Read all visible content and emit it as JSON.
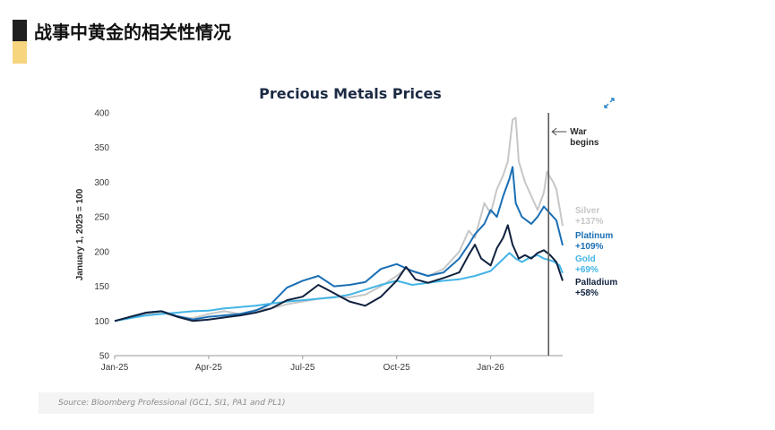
{
  "slide": {
    "title": "战事中黄金的相关性情况",
    "accent_colors": [
      "#1f1f1f",
      "#f7d57f"
    ]
  },
  "chart_data": {
    "type": "line",
    "title": "Precious Metals Prices",
    "xlabel": "",
    "ylabel": "January 1, 2025 = 100",
    "ylim": [
      50,
      400
    ],
    "yticks": [
      50,
      100,
      150,
      200,
      250,
      300,
      350,
      400
    ],
    "xlim": [
      0,
      14.3
    ],
    "xticks": [
      {
        "label": "Jan-25",
        "t": 0
      },
      {
        "label": "Apr-25",
        "t": 3
      },
      {
        "label": "Jul-25",
        "t": 6
      },
      {
        "label": "Oct-25",
        "t": 9
      },
      {
        "label": "Jan-26",
        "t": 12
      }
    ],
    "x_unit": "months since Jan 1, 2025",
    "grid": false,
    "series": [
      {
        "name": "Silver",
        "change": "+137%",
        "color": "#c7c7c7",
        "points": [
          [
            0,
            100
          ],
          [
            0.5,
            104
          ],
          [
            1,
            110
          ],
          [
            1.5,
            112
          ],
          [
            2,
            106
          ],
          [
            2.5,
            104
          ],
          [
            3,
            110
          ],
          [
            3.5,
            114
          ],
          [
            4,
            110
          ],
          [
            4.5,
            116
          ],
          [
            5,
            118
          ],
          [
            5.5,
            124
          ],
          [
            6,
            128
          ],
          [
            6.5,
            132
          ],
          [
            7,
            135
          ],
          [
            7.5,
            134
          ],
          [
            8,
            138
          ],
          [
            8.5,
            150
          ],
          [
            9,
            165
          ],
          [
            9.3,
            176
          ],
          [
            9.6,
            170
          ],
          [
            10,
            165
          ],
          [
            10.5,
            175
          ],
          [
            11,
            200
          ],
          [
            11.3,
            230
          ],
          [
            11.5,
            220
          ],
          [
            11.8,
            270
          ],
          [
            12,
            255
          ],
          [
            12.2,
            290
          ],
          [
            12.4,
            310
          ],
          [
            12.55,
            330
          ],
          [
            12.7,
            390
          ],
          [
            12.8,
            393
          ],
          [
            12.9,
            330
          ],
          [
            13.1,
            300
          ],
          [
            13.3,
            280
          ],
          [
            13.5,
            260
          ],
          [
            13.7,
            285
          ],
          [
            13.8,
            315
          ],
          [
            14.0,
            300
          ],
          [
            14.1,
            290
          ],
          [
            14.3,
            237
          ]
        ]
      },
      {
        "name": "Platinum",
        "change": "+109%",
        "color": "#1a6fb5",
        "points": [
          [
            0,
            100
          ],
          [
            0.5,
            105
          ],
          [
            1,
            112
          ],
          [
            1.5,
            114
          ],
          [
            2,
            107
          ],
          [
            2.5,
            102
          ],
          [
            3,
            106
          ],
          [
            3.5,
            108
          ],
          [
            4,
            110
          ],
          [
            4.5,
            115
          ],
          [
            5,
            125
          ],
          [
            5.5,
            148
          ],
          [
            6,
            158
          ],
          [
            6.5,
            165
          ],
          [
            7,
            150
          ],
          [
            7.5,
            152
          ],
          [
            8,
            156
          ],
          [
            8.5,
            175
          ],
          [
            9,
            182
          ],
          [
            9.5,
            172
          ],
          [
            10,
            165
          ],
          [
            10.5,
            170
          ],
          [
            11,
            190
          ],
          [
            11.3,
            210
          ],
          [
            11.5,
            225
          ],
          [
            11.8,
            240
          ],
          [
            12,
            260
          ],
          [
            12.2,
            250
          ],
          [
            12.4,
            280
          ],
          [
            12.6,
            305
          ],
          [
            12.7,
            322
          ],
          [
            12.8,
            270
          ],
          [
            13,
            250
          ],
          [
            13.3,
            240
          ],
          [
            13.5,
            250
          ],
          [
            13.7,
            265
          ],
          [
            13.9,
            255
          ],
          [
            14.1,
            245
          ],
          [
            14.3,
            209
          ]
        ]
      },
      {
        "name": "Gold",
        "change": "+69%",
        "color": "#43b5e6",
        "points": [
          [
            0,
            100
          ],
          [
            0.5,
            104
          ],
          [
            1,
            108
          ],
          [
            1.5,
            110
          ],
          [
            2,
            112
          ],
          [
            2.5,
            114
          ],
          [
            3,
            115
          ],
          [
            3.5,
            118
          ],
          [
            4,
            120
          ],
          [
            4.5,
            122
          ],
          [
            5,
            125
          ],
          [
            5.5,
            128
          ],
          [
            6,
            130
          ],
          [
            6.5,
            132
          ],
          [
            7,
            134
          ],
          [
            7.5,
            138
          ],
          [
            8,
            145
          ],
          [
            8.5,
            152
          ],
          [
            9,
            158
          ],
          [
            9.5,
            152
          ],
          [
            10,
            155
          ],
          [
            10.5,
            158
          ],
          [
            11,
            160
          ],
          [
            11.5,
            165
          ],
          [
            12,
            172
          ],
          [
            12.3,
            185
          ],
          [
            12.6,
            198
          ],
          [
            12.8,
            190
          ],
          [
            13,
            185
          ],
          [
            13.2,
            190
          ],
          [
            13.5,
            195
          ],
          [
            13.7,
            190
          ],
          [
            14,
            186
          ],
          [
            14.2,
            180
          ],
          [
            14.3,
            169
          ]
        ]
      },
      {
        "name": "Palladium",
        "change": "+58%",
        "color": "#10213f",
        "points": [
          [
            0,
            100
          ],
          [
            0.5,
            106
          ],
          [
            1,
            112
          ],
          [
            1.5,
            114
          ],
          [
            2,
            106
          ],
          [
            2.5,
            100
          ],
          [
            3,
            102
          ],
          [
            3.5,
            105
          ],
          [
            4,
            108
          ],
          [
            4.5,
            112
          ],
          [
            5,
            118
          ],
          [
            5.5,
            130
          ],
          [
            6,
            135
          ],
          [
            6.5,
            152
          ],
          [
            7,
            140
          ],
          [
            7.5,
            128
          ],
          [
            8,
            122
          ],
          [
            8.5,
            135
          ],
          [
            9,
            158
          ],
          [
            9.3,
            178
          ],
          [
            9.6,
            160
          ],
          [
            10,
            155
          ],
          [
            10.5,
            162
          ],
          [
            11,
            170
          ],
          [
            11.3,
            195
          ],
          [
            11.5,
            210
          ],
          [
            11.7,
            190
          ],
          [
            12,
            180
          ],
          [
            12.2,
            205
          ],
          [
            12.4,
            220
          ],
          [
            12.55,
            238
          ],
          [
            12.7,
            210
          ],
          [
            12.9,
            190
          ],
          [
            13.1,
            195
          ],
          [
            13.3,
            190
          ],
          [
            13.5,
            198
          ],
          [
            13.7,
            202
          ],
          [
            13.9,
            195
          ],
          [
            14.1,
            185
          ],
          [
            14.3,
            158
          ]
        ]
      }
    ],
    "annotations": [
      {
        "text_lines": [
          "War",
          "begins"
        ],
        "type": "vertical-line",
        "at_t": 13.85
      }
    ],
    "source": "Source: Bloomberg Professional (GC1, SI1, PA1 and PL1)"
  }
}
